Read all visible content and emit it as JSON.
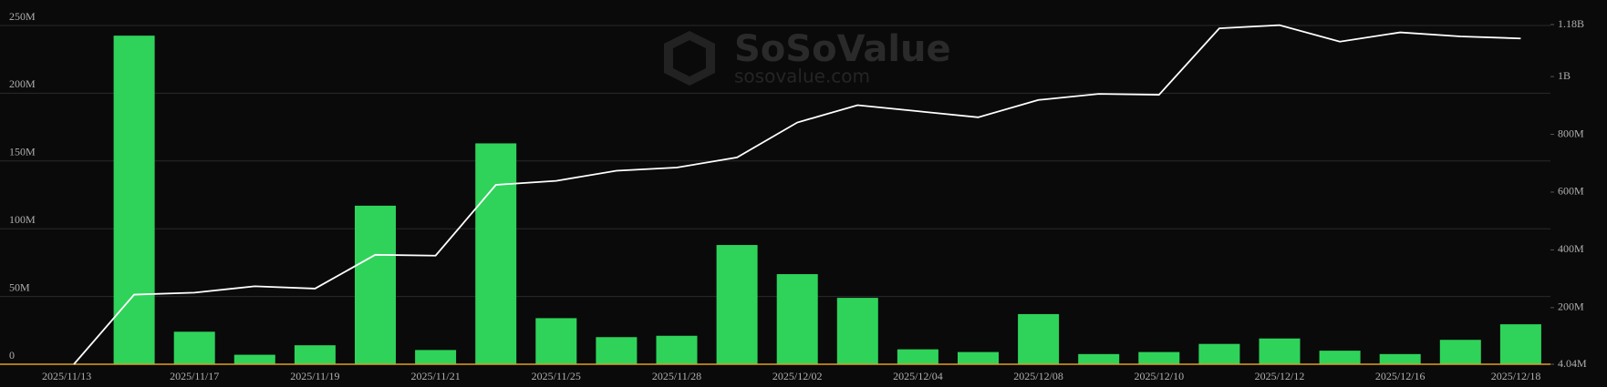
{
  "chart_data": {
    "type": "bar",
    "watermark": {
      "name": "SoSoValue",
      "url": "sosovalue.com"
    },
    "categories": [
      "2025/11/13",
      null,
      "2025/11/17",
      null,
      "2025/11/19",
      null,
      "2025/11/21",
      null,
      "2025/11/25",
      null,
      "2025/11/28",
      null,
      "2025/12/02",
      null,
      "2025/12/04",
      null,
      "2025/12/08",
      null,
      "2025/12/10",
      null,
      "2025/12/12",
      null,
      "2025/12/16",
      null,
      "2025/12/18"
    ],
    "series": [
      {
        "type": "bar",
        "color": "#2fd35a",
        "values": [
          0,
          242500000,
          24000000,
          7000000,
          14000000,
          117000000,
          10500000,
          163000000,
          34000000,
          20000000,
          21000000,
          88000000,
          66500000,
          49000000,
          11000000,
          9000000,
          37000000,
          7500000,
          9000000,
          15000000,
          19000000,
          10000000,
          7500000,
          18000000,
          29500000
        ]
      },
      {
        "type": "line",
        "axis": "y2",
        "color": "#ffffff",
        "values": [
          4040000,
          245000000,
          252000000,
          274000000,
          266000000,
          383000000,
          380000000,
          625000000,
          639000000,
          674000000,
          685000000,
          720000000,
          841000000,
          901000000,
          880000000,
          859000000,
          919000000,
          940000000,
          937000000,
          1167000000,
          1178000000,
          1121000000,
          1153000000,
          1139000000,
          1132000000
        ]
      }
    ],
    "ylim": [
      0,
      250000000
    ],
    "yticks": [
      0,
      {
        "value": 50000000,
        "label": "50M"
      },
      {
        "value": 100000000,
        "label": "100M"
      },
      {
        "value": 150000000,
        "label": "150M"
      },
      {
        "value": 200000000,
        "label": "200M"
      },
      {
        "value": 250000000,
        "label": "250M"
      }
    ],
    "y2lim": [
      4040000,
      1180000000
    ],
    "y2ticks": [
      {
        "value": 4040000,
        "label": "4.04M"
      },
      {
        "value": 200000000,
        "label": "200M"
      },
      {
        "value": 400000000,
        "label": "400M"
      },
      {
        "value": 600000000,
        "label": "600M"
      },
      {
        "value": 800000000,
        "label": "800M"
      },
      {
        "value": 1000000000,
        "label": "1B"
      },
      {
        "value": 1180000000,
        "label": "1.18B"
      }
    ],
    "grid": true,
    "baseline_color": "#e0a020"
  }
}
